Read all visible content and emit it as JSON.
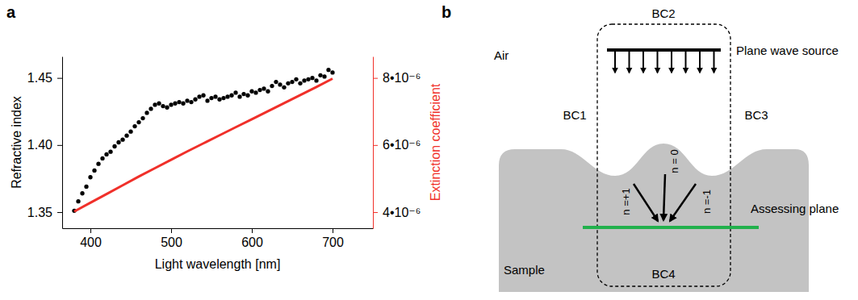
{
  "chart_data": {
    "type": "line",
    "panel_label": "a",
    "xlabel": "Light wavelength [nm]",
    "ylabel": "Refractive index",
    "y2label": "Extinction coefficient",
    "xlim": [
      365,
      750
    ],
    "xticks": [
      400,
      500,
      600,
      700
    ],
    "ylim": [
      1.338,
      1.466
    ],
    "yticks": [
      1.35,
      {
        "value": 1.4,
        "label": "1.40"
      },
      1.45
    ],
    "y2lim": [
      3.52e-06,
      8.64e-06
    ],
    "y2ticks": [
      {
        "value": 4e-06,
        "label": "4•10⁻⁶"
      },
      {
        "value": 6e-06,
        "label": "6•10⁻⁶"
      },
      {
        "value": 8e-06,
        "label": "8•10⁻⁶"
      }
    ],
    "series": [
      {
        "type": "scatter",
        "color": "#000000",
        "marker": "circle",
        "x": [
          380,
          385,
          390,
          395,
          400,
          405,
          410,
          415,
          420,
          425,
          430,
          435,
          440,
          445,
          450,
          455,
          460,
          465,
          470,
          475,
          480,
          485,
          490,
          495,
          500,
          505,
          510,
          515,
          520,
          525,
          530,
          535,
          540,
          545,
          550,
          555,
          560,
          565,
          570,
          575,
          580,
          585,
          590,
          595,
          600,
          605,
          610,
          615,
          620,
          625,
          630,
          635,
          640,
          645,
          650,
          655,
          660,
          665,
          670,
          675,
          680,
          685,
          690,
          695,
          700
        ],
        "values": [
          1.351,
          1.358,
          1.364,
          1.369,
          1.376,
          1.381,
          1.386,
          1.39,
          1.393,
          1.395,
          1.399,
          1.402,
          1.404,
          1.407,
          1.41,
          1.414,
          1.417,
          1.42,
          1.424,
          1.427,
          1.43,
          1.431,
          1.429,
          1.428,
          1.43,
          1.431,
          1.432,
          1.431,
          1.433,
          1.432,
          1.434,
          1.436,
          1.437,
          1.433,
          1.435,
          1.436,
          1.434,
          1.435,
          1.436,
          1.437,
          1.439,
          1.436,
          1.438,
          1.437,
          1.44,
          1.439,
          1.441,
          1.442,
          1.44,
          1.444,
          1.447,
          1.445,
          1.443,
          1.446,
          1.447,
          1.449,
          1.446,
          1.448,
          1.449,
          1.45,
          1.448,
          1.452,
          1.451,
          1.456,
          1.454
        ]
      },
      {
        "type": "line",
        "color": "#f0302a",
        "axis": "y2",
        "line_style": "solid",
        "x": [
          380,
          400,
          420,
          440,
          460,
          480,
          500,
          520,
          540,
          560,
          580,
          600,
          620,
          640,
          660,
          680,
          700
        ],
        "values": [
          4.02e-06,
          4.28e-06,
          4.54e-06,
          4.8e-06,
          5.06e-06,
          5.31e-06,
          5.56e-06,
          5.81e-06,
          6.05e-06,
          6.29e-06,
          6.53e-06,
          6.77e-06,
          7.01e-06,
          7.25e-06,
          7.49e-06,
          7.73e-06,
          7.98e-06
        ]
      }
    ]
  },
  "diagram": {
    "panel_label": "b",
    "air": "Air",
    "source": "Plane wave source",
    "boundaries": [
      "BC1",
      "BC2",
      "BC3",
      "BC4"
    ],
    "orders": [
      "n =+1",
      "n = 0",
      "n =-1"
    ],
    "plane": "Assessing plane",
    "sample": "Sample"
  }
}
